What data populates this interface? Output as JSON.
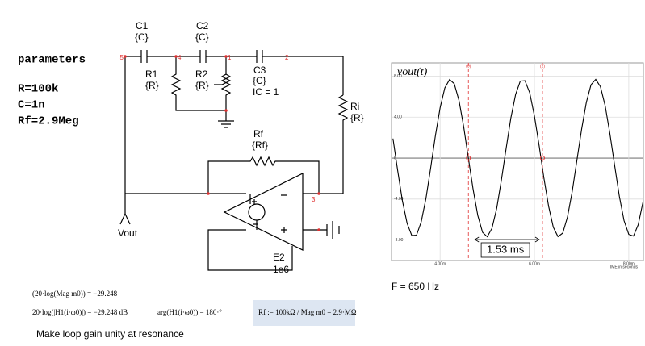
{
  "parameters": {
    "title": "parameters",
    "lines": [
      "R=100k",
      "C=1n",
      "Rf=2.9Meg"
    ]
  },
  "components": [
    {
      "name": "C1",
      "value": "{C}"
    },
    {
      "name": "C2",
      "value": "{C}"
    },
    {
      "name": "C3",
      "value": "{C}",
      "extra": "IC = 1"
    },
    {
      "name": "R1",
      "value": "{R}"
    },
    {
      "name": "R2",
      "value": "{R}"
    },
    {
      "name": "Ri",
      "value": "{R}"
    },
    {
      "name": "Rf",
      "value": "{Rf}"
    },
    {
      "name": "E2",
      "value": "1e6"
    }
  ],
  "output_label": "Vout",
  "node_labels": [
    "5",
    "4",
    "1",
    "2",
    "3"
  ],
  "math": {
    "line1": "(20·log(Mag m0)) = −29.248",
    "line2": "20·log(|H1(i·ω0)|) = −29.248  dB",
    "line3": "arg(H1(i·ω0)) = 180·°",
    "formula": "Rf := 100kΩ / Mag m0 = 2.9·MΩ"
  },
  "note": "Make loop gain unity at resonance",
  "frequency": "F = 650 Hz",
  "chart_data": {
    "type": "line",
    "title": "vout(t)",
    "xlabel": "TIME in seconds",
    "color": "#000000",
    "x": [
      0.003,
      0.0031,
      0.0032,
      0.0033,
      0.0034,
      0.0035,
      0.0036,
      0.0037,
      0.0038,
      0.0039,
      0.004,
      0.0041,
      0.0042,
      0.0043,
      0.0044,
      0.0045,
      0.0046,
      0.0047,
      0.0048,
      0.0049,
      0.005,
      0.0051,
      0.0052,
      0.0053,
      0.0054,
      0.0055,
      0.0056,
      0.0057,
      0.0058,
      0.0059,
      0.006,
      0.0061,
      0.0062,
      0.0063,
      0.0064,
      0.0065,
      0.0066,
      0.0067,
      0.0068,
      0.0069,
      0.007,
      0.0071,
      0.0072,
      0.0073,
      0.0074,
      0.0075,
      0.0076,
      0.0077,
      0.0078,
      0.0079,
      0.008,
      0.0081,
      0.0082,
      0.0083
    ],
    "values": [
      1.91,
      -1.2,
      -4.13,
      -6.37,
      -7.56,
      -7.52,
      -6.22,
      -3.92,
      -0.96,
      2.16,
      4.92,
      6.85,
      7.68,
      7.27,
      5.62,
      3.06,
      0,
      -3.06,
      -5.61,
      -7.25,
      -7.68,
      -6.86,
      -4.91,
      -2.15,
      0.96,
      3.9,
      6.21,
      7.52,
      7.56,
      6.38,
      4.13,
      1.2,
      -1.91,
      -4.71,
      -6.75,
      -7.67,
      -7.32,
      -5.77,
      -3.28,
      -0.25,
      2.83,
      5.43,
      7.16,
      7.69,
      6.98,
      5.1,
      2.39,
      -0.72,
      -3.71,
      -6.09,
      -7.45,
      -7.61,
      -6.5,
      -4.33
    ],
    "xlim": [
      0.00297,
      0.00831
    ],
    "ylim": [
      -10,
      9.3
    ],
    "xticks": [
      {
        "value": 0.004,
        "label": "4.00m"
      },
      {
        "value": 0.006,
        "label": "6.00m"
      },
      {
        "value": 0.008,
        "label": "8.00m"
      }
    ],
    "yticks": [
      {
        "value": 8,
        "label": "8.00"
      },
      {
        "value": 4,
        "label": "4.00"
      },
      0,
      {
        "value": -4,
        "label": "-4.00"
      },
      {
        "value": -8,
        "label": "-8.00"
      }
    ],
    "grid": true,
    "cursors": [
      {
        "label": "(0)",
        "x": 0.0046
      },
      {
        "label": "(1)",
        "x": 0.00617
      }
    ],
    "annotation": "1.53 ms"
  }
}
